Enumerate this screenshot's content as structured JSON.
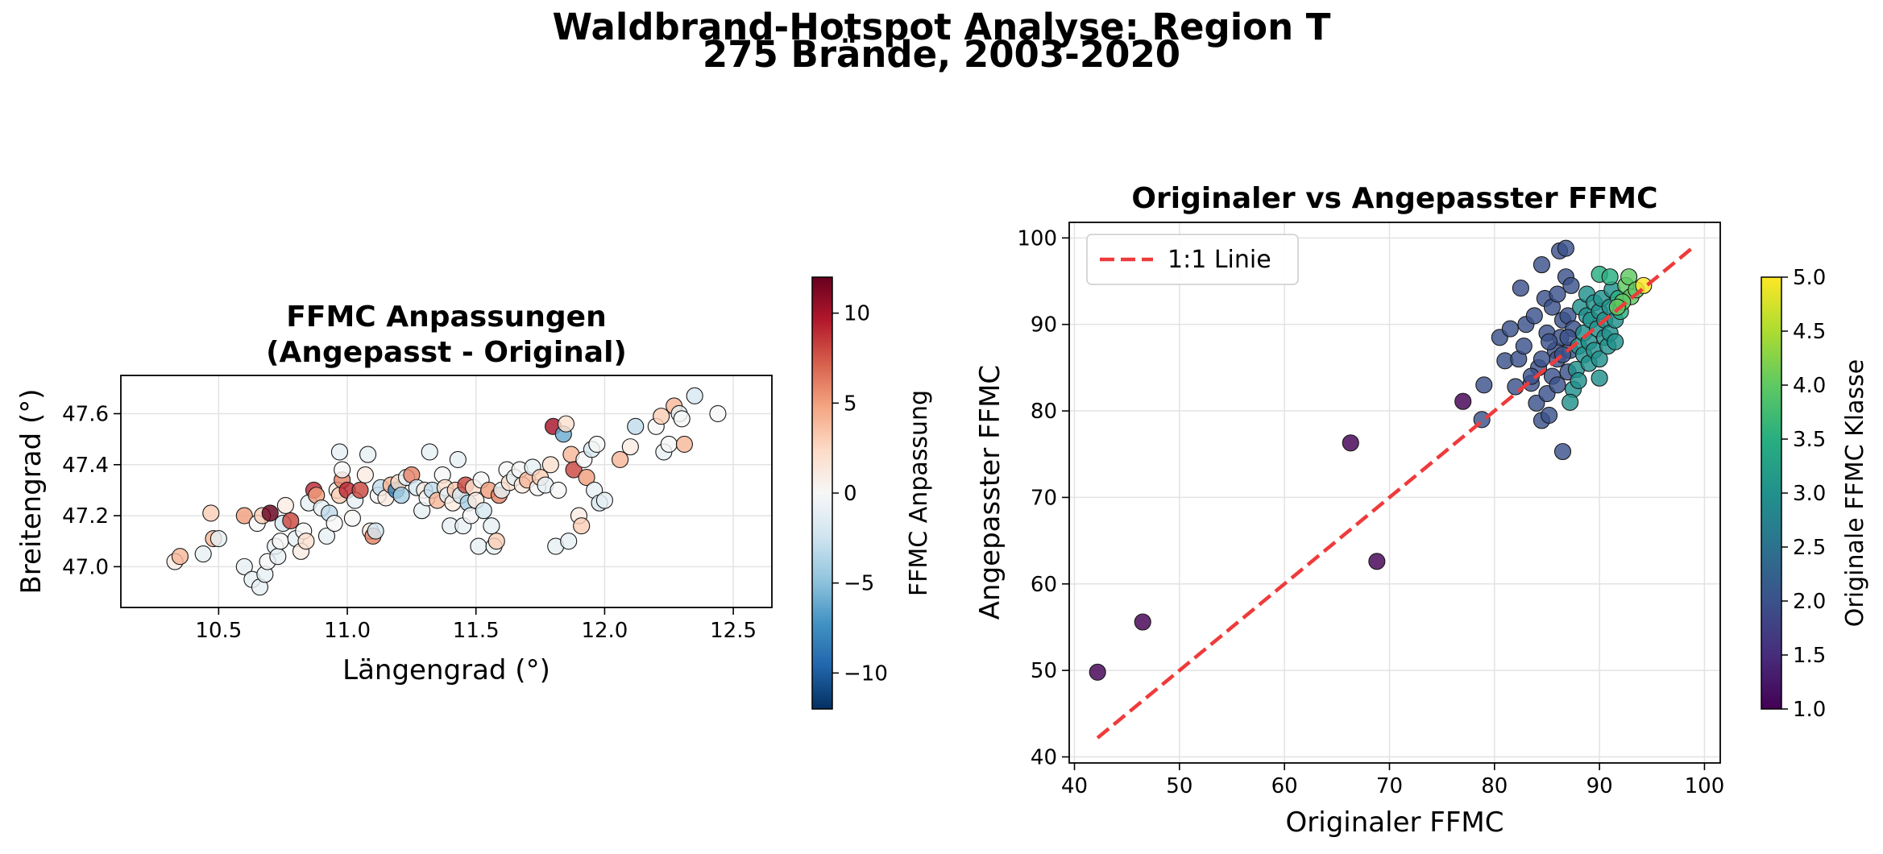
{
  "figure": {
    "suptitle_line1": "Waldbrand-Hotspot Analyse: Region T",
    "suptitle_line2": "275 Brände, 2003-2020"
  },
  "chart_data": [
    {
      "type": "scatter",
      "title_line1": "FFMC Anpassungen",
      "title_line2": "(Angepasst - Original)",
      "xlabel": "Längengrad (°)",
      "ylabel": "Breitengrad (°)",
      "xlim": [
        10.12,
        12.65
      ],
      "ylim": [
        46.84,
        47.75
      ],
      "xticks": [
        "10.5",
        "11.0",
        "11.5",
        "12.0",
        "12.5"
      ],
      "yticks": [
        "47.0",
        "47.2",
        "47.4",
        "47.6"
      ],
      "grid": true,
      "colorbar": {
        "label": "FFMC Anpassung",
        "colormap": "RdBu_r",
        "range": [
          -12,
          12
        ],
        "ticks": [
          "−10",
          "−5",
          "0",
          "5",
          "10"
        ]
      },
      "points_note_x_y_value": "lon, lat, FFMC adjustment",
      "points": [
        [
          10.33,
          47.02,
          1
        ],
        [
          10.35,
          47.04,
          4
        ],
        [
          10.44,
          47.05,
          -1
        ],
        [
          10.47,
          47.21,
          3
        ],
        [
          10.48,
          47.11,
          4
        ],
        [
          10.5,
          47.11,
          -1
        ],
        [
          10.6,
          47.0,
          -1
        ],
        [
          10.6,
          47.2,
          5
        ],
        [
          10.63,
          46.95,
          -1
        ],
        [
          10.65,
          47.17,
          0
        ],
        [
          10.66,
          46.92,
          -1
        ],
        [
          10.67,
          47.2,
          3
        ],
        [
          10.68,
          46.97,
          -1
        ],
        [
          10.69,
          47.02,
          0
        ],
        [
          10.7,
          47.21,
          12
        ],
        [
          10.72,
          47.08,
          -1
        ],
        [
          10.73,
          47.04,
          -1
        ],
        [
          10.74,
          47.1,
          0
        ],
        [
          10.75,
          47.17,
          -2
        ],
        [
          10.76,
          47.24,
          1
        ],
        [
          10.78,
          47.18,
          8
        ],
        [
          10.8,
          47.11,
          -1
        ],
        [
          10.82,
          47.06,
          1
        ],
        [
          10.83,
          47.14,
          0
        ],
        [
          10.84,
          47.1,
          2
        ],
        [
          10.85,
          47.25,
          -1
        ],
        [
          10.87,
          47.3,
          9
        ],
        [
          10.88,
          47.28,
          5
        ],
        [
          10.9,
          47.23,
          -1
        ],
        [
          10.92,
          47.12,
          -1
        ],
        [
          10.93,
          47.21,
          -3
        ],
        [
          10.95,
          47.17,
          0
        ],
        [
          10.96,
          47.3,
          1
        ],
        [
          10.97,
          47.28,
          3
        ],
        [
          10.98,
          47.34,
          6
        ],
        [
          10.97,
          47.45,
          -1
        ],
        [
          10.98,
          47.38,
          0
        ],
        [
          11.0,
          47.3,
          9
        ],
        [
          11.02,
          47.19,
          0
        ],
        [
          11.03,
          47.26,
          -1
        ],
        [
          11.05,
          47.3,
          8
        ],
        [
          11.07,
          47.36,
          1
        ],
        [
          11.08,
          47.44,
          -1
        ],
        [
          11.09,
          47.14,
          1
        ],
        [
          11.1,
          47.12,
          6
        ],
        [
          11.11,
          47.14,
          -2
        ],
        [
          11.12,
          47.28,
          0
        ],
        [
          11.13,
          47.31,
          -3
        ],
        [
          11.15,
          47.27,
          1
        ],
        [
          11.17,
          47.32,
          4
        ],
        [
          11.19,
          47.3,
          -8
        ],
        [
          11.2,
          47.33,
          2
        ],
        [
          11.21,
          47.28,
          -4
        ],
        [
          11.23,
          47.35,
          -1
        ],
        [
          11.25,
          47.36,
          6
        ],
        [
          11.27,
          47.31,
          -2
        ],
        [
          11.29,
          47.22,
          -1
        ],
        [
          11.3,
          47.3,
          1
        ],
        [
          11.31,
          47.27,
          0
        ],
        [
          11.32,
          47.45,
          -1
        ],
        [
          11.33,
          47.3,
          -3
        ],
        [
          11.35,
          47.26,
          4
        ],
        [
          11.37,
          47.36,
          0
        ],
        [
          11.38,
          47.31,
          2
        ],
        [
          11.39,
          47.28,
          -1
        ],
        [
          11.4,
          47.16,
          -1
        ],
        [
          11.41,
          47.25,
          1
        ],
        [
          11.42,
          47.3,
          3
        ],
        [
          11.43,
          47.42,
          -1
        ],
        [
          11.44,
          47.28,
          -2
        ],
        [
          11.45,
          47.16,
          -1
        ],
        [
          11.46,
          47.32,
          8
        ],
        [
          11.47,
          47.25,
          -4
        ],
        [
          11.48,
          47.2,
          0
        ],
        [
          11.49,
          47.31,
          2
        ],
        [
          11.5,
          47.26,
          1
        ],
        [
          11.51,
          47.08,
          -1
        ],
        [
          11.52,
          47.34,
          0
        ],
        [
          11.53,
          47.22,
          -2
        ],
        [
          11.55,
          47.3,
          5
        ],
        [
          11.56,
          47.16,
          -1
        ],
        [
          11.57,
          47.08,
          -1
        ],
        [
          11.58,
          47.1,
          3
        ],
        [
          11.59,
          47.28,
          6
        ],
        [
          11.6,
          47.3,
          -1
        ],
        [
          11.62,
          47.38,
          0
        ],
        [
          11.63,
          47.33,
          2
        ],
        [
          11.65,
          47.35,
          -1
        ],
        [
          11.67,
          47.38,
          0
        ],
        [
          11.68,
          47.32,
          1
        ],
        [
          11.7,
          47.34,
          4
        ],
        [
          11.72,
          47.39,
          -1
        ],
        [
          11.74,
          47.31,
          0
        ],
        [
          11.75,
          47.35,
          3
        ],
        [
          11.77,
          47.32,
          -1
        ],
        [
          11.79,
          47.4,
          2
        ],
        [
          11.8,
          47.55,
          10
        ],
        [
          11.81,
          47.08,
          -1
        ],
        [
          11.82,
          47.3,
          0
        ],
        [
          11.84,
          47.52,
          -6
        ],
        [
          11.85,
          47.56,
          2
        ],
        [
          11.86,
          47.1,
          -1
        ],
        [
          11.87,
          47.44,
          4
        ],
        [
          11.88,
          47.38,
          8
        ],
        [
          11.9,
          47.2,
          1
        ],
        [
          11.91,
          47.16,
          3
        ],
        [
          11.92,
          47.42,
          0
        ],
        [
          11.93,
          47.35,
          5
        ],
        [
          11.95,
          47.46,
          -2
        ],
        [
          11.96,
          47.3,
          -1
        ],
        [
          11.97,
          47.48,
          0
        ],
        [
          11.98,
          47.25,
          -2
        ],
        [
          12.0,
          47.26,
          -1
        ],
        [
          12.06,
          47.42,
          4
        ],
        [
          12.1,
          47.47,
          1
        ],
        [
          12.12,
          47.55,
          -3
        ],
        [
          12.2,
          47.55,
          0
        ],
        [
          12.22,
          47.59,
          3
        ],
        [
          12.23,
          47.45,
          -1
        ],
        [
          12.25,
          47.48,
          0
        ],
        [
          12.27,
          47.63,
          4
        ],
        [
          12.29,
          47.6,
          -1
        ],
        [
          12.3,
          47.58,
          0
        ],
        [
          12.31,
          47.48,
          4
        ],
        [
          12.35,
          47.67,
          -2
        ],
        [
          12.44,
          47.6,
          0
        ]
      ]
    },
    {
      "type": "scatter",
      "title": "Originaler vs Angepasster FFMC",
      "xlabel": "Originaler FFMC",
      "ylabel": "Angepasster FFMC",
      "xlim": [
        39.5,
        101.5
      ],
      "ylim": [
        39.3,
        101.8
      ],
      "xticks": [
        "40",
        "50",
        "60",
        "70",
        "80",
        "90",
        "100"
      ],
      "yticks": [
        "40",
        "50",
        "60",
        "70",
        "80",
        "90",
        "100"
      ],
      "grid": true,
      "legend": {
        "position": "top-left",
        "entry": "1:1 Linie"
      },
      "reference_line": {
        "name": "1:1 Linie",
        "from": [
          42.2,
          42.2
        ],
        "to": [
          99,
          99
        ],
        "color": "#ee3b3b"
      },
      "colorbar": {
        "label": "Originale FFMC Klasse",
        "colormap": "viridis",
        "range": [
          1.0,
          5.0
        ],
        "ticks": [
          "1.0",
          "1.5",
          "2.0",
          "2.5",
          "3.0",
          "3.5",
          "4.0",
          "4.5",
          "5.0"
        ]
      },
      "points_note_x_y_value": "original FFMC, adjusted FFMC, FFMC class",
      "points": [
        [
          42.2,
          49.8,
          1
        ],
        [
          46.5,
          55.6,
          1
        ],
        [
          66.3,
          76.3,
          1
        ],
        [
          68.8,
          62.6,
          1
        ],
        [
          77.0,
          81.1,
          1
        ],
        [
          78.8,
          79.0,
          2
        ],
        [
          79.0,
          83.0,
          2
        ],
        [
          80.5,
          88.5,
          2
        ],
        [
          81.0,
          85.8,
          2
        ],
        [
          81.5,
          89.5,
          2
        ],
        [
          82.0,
          82.8,
          2
        ],
        [
          82.3,
          86.0,
          2
        ],
        [
          82.5,
          94.2,
          2
        ],
        [
          82.8,
          87.5,
          2
        ],
        [
          83.0,
          90.0,
          2
        ],
        [
          83.5,
          83.2,
          2
        ],
        [
          83.8,
          91.0,
          2
        ],
        [
          84.0,
          80.9,
          2
        ],
        [
          84.2,
          85.0,
          2
        ],
        [
          84.5,
          78.9,
          2
        ],
        [
          84.5,
          96.9,
          2
        ],
        [
          84.8,
          93.0,
          2
        ],
        [
          85.0,
          82.0,
          2
        ],
        [
          85.0,
          89.0,
          2
        ],
        [
          85.2,
          79.5,
          2
        ],
        [
          85.5,
          84.0,
          2
        ],
        [
          85.5,
          92.0,
          2
        ],
        [
          85.8,
          87.0,
          2
        ],
        [
          86.0,
          86.0,
          2
        ],
        [
          86.0,
          93.5,
          2
        ],
        [
          86.2,
          98.5,
          2
        ],
        [
          86.3,
          88.5,
          2
        ],
        [
          86.5,
          75.3,
          2
        ],
        [
          86.5,
          90.5,
          2
        ],
        [
          86.8,
          98.8,
          2
        ],
        [
          86.8,
          95.5,
          2
        ],
        [
          87.0,
          84.5,
          2
        ],
        [
          87.0,
          91.0,
          2
        ],
        [
          87.2,
          87.0,
          2
        ],
        [
          87.3,
          94.5,
          2
        ],
        [
          87.5,
          89.5,
          2
        ],
        [
          83.5,
          84.0,
          2
        ],
        [
          84.5,
          86.0,
          2
        ],
        [
          85.2,
          88.0,
          2
        ],
        [
          86.0,
          83.0,
          2
        ],
        [
          86.5,
          86.5,
          2
        ],
        [
          87.0,
          88.5,
          2
        ],
        [
          87.5,
          82.5,
          3
        ],
        [
          87.8,
          84.8,
          3
        ],
        [
          87.2,
          81.0,
          3
        ],
        [
          88.0,
          83.5,
          3
        ],
        [
          88.0,
          87.5,
          3
        ],
        [
          88.2,
          92.0,
          3
        ],
        [
          88.5,
          89.0,
          3
        ],
        [
          88.5,
          86.5,
          3
        ],
        [
          88.8,
          91.0,
          3
        ],
        [
          88.8,
          93.5,
          3
        ],
        [
          89.0,
          85.5,
          3
        ],
        [
          89.0,
          88.0,
          3
        ],
        [
          89.2,
          90.5,
          3
        ],
        [
          89.5,
          92.5,
          3
        ],
        [
          89.5,
          87.0,
          3
        ],
        [
          89.8,
          89.5,
          3
        ],
        [
          90.0,
          91.5,
          3
        ],
        [
          90.0,
          86.0,
          3
        ],
        [
          90.2,
          93.0,
          3
        ],
        [
          90.5,
          88.5,
          3
        ],
        [
          90.5,
          90.5,
          3
        ],
        [
          90.0,
          83.8,
          3
        ],
        [
          90.8,
          87.5,
          3
        ],
        [
          91.0,
          92.0,
          3
        ],
        [
          91.0,
          89.0,
          3
        ],
        [
          91.2,
          94.0,
          3
        ],
        [
          91.5,
          90.5,
          3
        ],
        [
          91.5,
          88.0,
          3
        ],
        [
          90.0,
          95.8,
          3.5
        ],
        [
          91.0,
          95.5,
          3.5
        ],
        [
          91.8,
          93.0,
          3.5
        ],
        [
          92.0,
          91.5,
          3.5
        ],
        [
          92.5,
          94.5,
          4
        ],
        [
          92.8,
          95.5,
          4
        ],
        [
          93.0,
          93.2,
          4
        ],
        [
          93.5,
          94.0,
          4
        ],
        [
          92.2,
          92.6,
          4
        ],
        [
          91.7,
          92.0,
          4
        ],
        [
          94.2,
          94.5,
          5
        ]
      ]
    }
  ]
}
